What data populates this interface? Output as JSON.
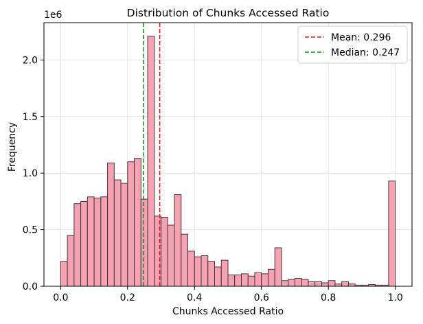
{
  "chart_data": {
    "type": "bar",
    "title": "Distribution of Chunks Accessed Ratio",
    "xlabel": "Chunks Accessed Ratio",
    "ylabel": "Frequency",
    "y_multiplier_label": "1e6",
    "xlim": [
      -0.05,
      1.05
    ],
    "ylim": [
      0,
      2.33
    ],
    "bin_width": 0.02,
    "bins_start": [
      0.0,
      0.02,
      0.04,
      0.06,
      0.08,
      0.1,
      0.12,
      0.14,
      0.16,
      0.18,
      0.2,
      0.22,
      0.24,
      0.26,
      0.28,
      0.3,
      0.32,
      0.34,
      0.36,
      0.38,
      0.4,
      0.42,
      0.44,
      0.46,
      0.48,
      0.5,
      0.52,
      0.54,
      0.56,
      0.58,
      0.6,
      0.62,
      0.64,
      0.66,
      0.68,
      0.7,
      0.72,
      0.74,
      0.76,
      0.78,
      0.8,
      0.82,
      0.84,
      0.86,
      0.88,
      0.9,
      0.92,
      0.94,
      0.96,
      0.98
    ],
    "values": [
      0.22,
      0.45,
      0.73,
      0.75,
      0.79,
      0.78,
      0.79,
      1.09,
      0.94,
      0.91,
      1.1,
      1.13,
      0.77,
      2.21,
      0.62,
      0.61,
      0.54,
      0.81,
      0.46,
      0.31,
      0.26,
      0.27,
      0.22,
      0.17,
      0.23,
      0.1,
      0.1,
      0.11,
      0.09,
      0.12,
      0.11,
      0.15,
      0.34,
      0.05,
      0.06,
      0.07,
      0.06,
      0.04,
      0.04,
      0.03,
      0.05,
      0.02,
      0.04,
      0.02,
      0.01,
      0.01,
      0.015,
      0.01,
      0.01,
      0.93
    ],
    "xticks": [
      0.0,
      0.2,
      0.4,
      0.6,
      0.8,
      1.0
    ],
    "xtick_labels": [
      "0.0",
      "0.2",
      "0.4",
      "0.6",
      "0.8",
      "1.0"
    ],
    "yticks": [
      0.0,
      0.5,
      1.0,
      1.5,
      2.0
    ],
    "ytick_labels": [
      "0.0",
      "0.5",
      "1.0",
      "1.5",
      "2.0"
    ],
    "grid": true,
    "bar_color": "#f7a1b3",
    "bar_edge": "#3a3a3a",
    "vlines": [
      {
        "name": "Mean: 0.296",
        "x": 0.296,
        "color": "#e31a1c"
      },
      {
        "name": "Median: 0.247",
        "x": 0.247,
        "color": "#1a8a1a"
      }
    ],
    "legend_position": "top-right"
  }
}
